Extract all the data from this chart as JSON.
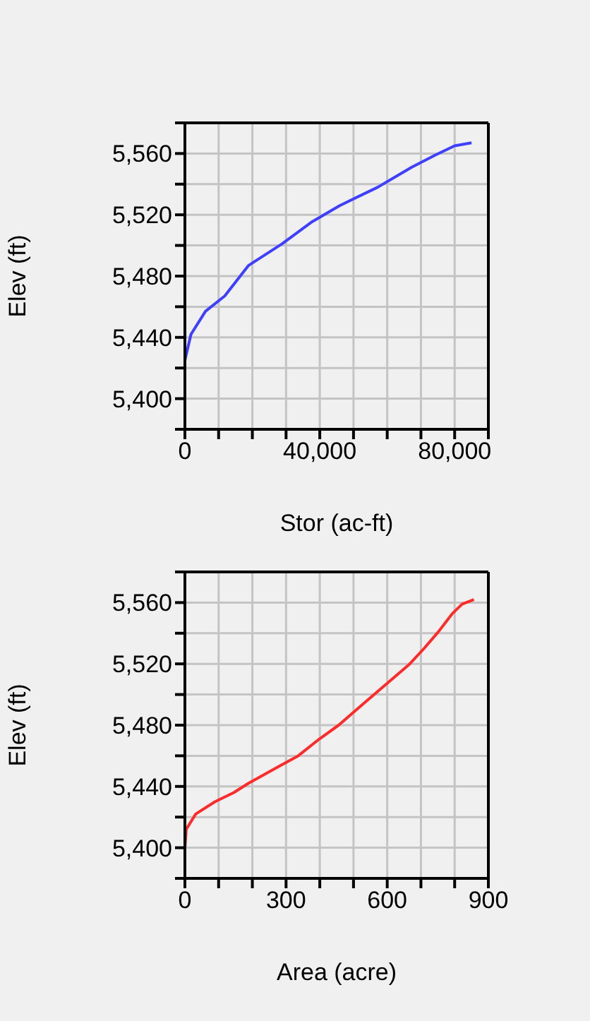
{
  "chart_data": [
    {
      "type": "line",
      "xlabel": "Stor (ac-ft)",
      "ylabel": "Elev (ft)",
      "grid": true,
      "color": "#3f3fff",
      "x": [
        0,
        0,
        1800,
        6100,
        11800,
        18900,
        28800,
        37400,
        45900,
        57200,
        67200,
        74300,
        80000,
        85000
      ],
      "values": [
        5400,
        5425,
        5442,
        5457,
        5467,
        5487,
        5501,
        5515,
        5526,
        5538,
        5551,
        5559,
        5565,
        5567
      ],
      "xlim": [
        0,
        90000
      ],
      "xticks": [
        0,
        {
          "value": 10000,
          "label": null
        },
        {
          "value": 20000,
          "label": null
        },
        {
          "value": 30000,
          "label": null
        },
        {
          "value": 40000,
          "label": "40,000"
        },
        {
          "value": 50000,
          "label": null
        },
        {
          "value": 60000,
          "label": null
        },
        {
          "value": 70000,
          "label": null
        },
        {
          "value": 80000,
          "label": "80,000"
        },
        {
          "value": 90000,
          "label": null
        }
      ],
      "ylim": [
        5380,
        5580
      ],
      "yticks": [
        {
          "value": 5380,
          "label": null
        },
        {
          "value": 5400,
          "label": "5,400"
        },
        {
          "value": 5420,
          "label": null
        },
        {
          "value": 5440,
          "label": "5,440"
        },
        {
          "value": 5460,
          "label": null
        },
        {
          "value": 5480,
          "label": "5,480"
        },
        {
          "value": 5500,
          "label": null
        },
        {
          "value": 5520,
          "label": "5,520"
        },
        {
          "value": 5540,
          "label": null
        },
        {
          "value": 5560,
          "label": "5,560"
        },
        {
          "value": 5580,
          "label": null
        }
      ]
    },
    {
      "type": "line",
      "xlabel": "Area (acre)",
      "ylabel": "Elev (ft)",
      "grid": true,
      "color": "#ff2a2a",
      "x": [
        0,
        4,
        32,
        89,
        145,
        188,
        286,
        336,
        399,
        456,
        540,
        625,
        667,
        709,
        752,
        794,
        822,
        857
      ],
      "values": [
        5400,
        5412,
        5422,
        5430,
        5436,
        5442,
        5454,
        5460,
        5471,
        5480,
        5496,
        5512,
        5520,
        5530,
        5541,
        5553,
        5559,
        5562
      ],
      "xlim": [
        0,
        900
      ],
      "xticks": [
        0,
        {
          "value": 100,
          "label": null
        },
        {
          "value": 200,
          "label": null
        },
        300,
        {
          "value": 400,
          "label": null
        },
        {
          "value": 500,
          "label": null
        },
        600,
        {
          "value": 700,
          "label": null
        },
        {
          "value": 800,
          "label": null
        },
        900
      ],
      "ylim": [
        5380,
        5580
      ],
      "yticks": [
        {
          "value": 5380,
          "label": null
        },
        {
          "value": 5400,
          "label": "5,400"
        },
        {
          "value": 5420,
          "label": null
        },
        {
          "value": 5440,
          "label": "5,440"
        },
        {
          "value": 5460,
          "label": null
        },
        {
          "value": 5480,
          "label": "5,480"
        },
        {
          "value": 5500,
          "label": null
        },
        {
          "value": 5520,
          "label": "5,520"
        },
        {
          "value": 5540,
          "label": null
        },
        {
          "value": 5560,
          "label": "5,560"
        },
        {
          "value": 5580,
          "label": null
        }
      ]
    }
  ]
}
